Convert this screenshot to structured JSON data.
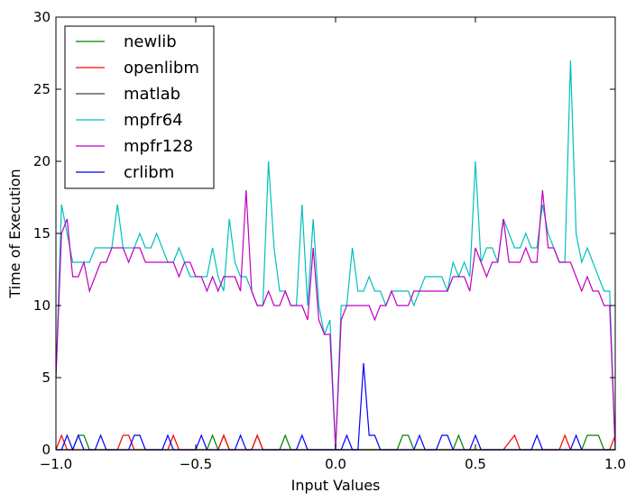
{
  "chart_data": {
    "type": "line",
    "title": "",
    "xlabel": "Input Values",
    "ylabel": "Time of Execution",
    "xlim": [
      -1.0,
      1.0
    ],
    "ylim": [
      0,
      30
    ],
    "xticks": [
      -1.0,
      -0.5,
      0.0,
      0.5,
      1.0
    ],
    "xtick_labels": [
      "−1.0",
      "−0.5",
      "0.0",
      "0.5",
      "1.0"
    ],
    "yticks": [
      0,
      5,
      10,
      15,
      20,
      25,
      30
    ],
    "ytick_labels": [
      "0",
      "5",
      "10",
      "15",
      "20",
      "25",
      "30"
    ],
    "grid": false,
    "legend_position": "top-left",
    "series": [
      {
        "name": "newlib",
        "color": "#008000",
        "points": [
          [
            -1.0,
            0
          ],
          [
            -0.94,
            0
          ],
          [
            -0.92,
            1
          ],
          [
            -0.9,
            1
          ],
          [
            -0.88,
            0
          ],
          [
            -0.84,
            0
          ],
          [
            -0.82,
            0
          ],
          [
            -0.8,
            0
          ],
          [
            -0.46,
            0
          ],
          [
            -0.44,
            1
          ],
          [
            -0.42,
            0
          ],
          [
            -0.4,
            1
          ],
          [
            -0.38,
            0
          ],
          [
            -0.3,
            0
          ],
          [
            -0.28,
            1
          ],
          [
            -0.26,
            0
          ],
          [
            -0.2,
            0
          ],
          [
            -0.18,
            1
          ],
          [
            -0.16,
            0
          ],
          [
            0.22,
            0
          ],
          [
            0.24,
            1
          ],
          [
            0.26,
            1
          ],
          [
            0.28,
            0
          ],
          [
            0.42,
            0
          ],
          [
            0.44,
            1
          ],
          [
            0.46,
            0
          ],
          [
            0.88,
            0
          ],
          [
            0.9,
            1
          ],
          [
            0.92,
            1
          ],
          [
            0.94,
            1
          ],
          [
            0.96,
            0
          ],
          [
            0.98,
            0
          ],
          [
            1.0,
            0
          ]
        ]
      },
      {
        "name": "openlibm",
        "color": "#ff0000",
        "points": [
          [
            -1.0,
            0
          ],
          [
            -0.98,
            1
          ],
          [
            -0.96,
            0
          ],
          [
            -0.78,
            0
          ],
          [
            -0.76,
            1
          ],
          [
            -0.74,
            1
          ],
          [
            -0.72,
            0
          ],
          [
            -0.6,
            0
          ],
          [
            -0.58,
            1
          ],
          [
            -0.56,
            0
          ],
          [
            -0.42,
            0
          ],
          [
            -0.4,
            1
          ],
          [
            -0.38,
            0
          ],
          [
            -0.3,
            0
          ],
          [
            -0.28,
            1
          ],
          [
            -0.26,
            0
          ],
          [
            0.1,
            0
          ],
          [
            0.12,
            0
          ],
          [
            -0.0,
            0
          ],
          [
            0.06,
            0
          ],
          [
            0.28,
            0
          ],
          [
            0.3,
            0
          ],
          [
            0.6,
            0
          ],
          [
            0.64,
            1
          ],
          [
            0.66,
            0
          ],
          [
            0.8,
            0
          ],
          [
            0.82,
            1
          ],
          [
            0.84,
            0
          ],
          [
            0.98,
            0
          ],
          [
            1.0,
            1
          ]
        ]
      },
      {
        "name": "matlab",
        "color": "#404040",
        "points": [
          [
            -1.0,
            0
          ],
          [
            1.0,
            0
          ]
        ]
      },
      {
        "name": "mpfr64",
        "color": "#00bfbf",
        "points": [
          [
            -1.0,
            5
          ],
          [
            -0.98,
            17
          ],
          [
            -0.96,
            15
          ],
          [
            -0.94,
            13
          ],
          [
            -0.92,
            13
          ],
          [
            -0.9,
            13
          ],
          [
            -0.88,
            13
          ],
          [
            -0.86,
            14
          ],
          [
            -0.84,
            14
          ],
          [
            -0.82,
            14
          ],
          [
            -0.8,
            14
          ],
          [
            -0.78,
            17
          ],
          [
            -0.76,
            14
          ],
          [
            -0.74,
            14
          ],
          [
            -0.72,
            14
          ],
          [
            -0.7,
            15
          ],
          [
            -0.68,
            14
          ],
          [
            -0.66,
            14
          ],
          [
            -0.64,
            15
          ],
          [
            -0.62,
            14
          ],
          [
            -0.6,
            13
          ],
          [
            -0.58,
            13
          ],
          [
            -0.56,
            14
          ],
          [
            -0.54,
            13
          ],
          [
            -0.52,
            12
          ],
          [
            -0.5,
            12
          ],
          [
            -0.48,
            12
          ],
          [
            -0.46,
            12
          ],
          [
            -0.44,
            14
          ],
          [
            -0.42,
            12
          ],
          [
            -0.4,
            11
          ],
          [
            -0.38,
            16
          ],
          [
            -0.36,
            13
          ],
          [
            -0.34,
            12
          ],
          [
            -0.32,
            12
          ],
          [
            -0.3,
            11
          ],
          [
            -0.28,
            10
          ],
          [
            -0.26,
            10
          ],
          [
            -0.24,
            20
          ],
          [
            -0.22,
            14
          ],
          [
            -0.2,
            11
          ],
          [
            -0.18,
            11
          ],
          [
            -0.16,
            10
          ],
          [
            -0.14,
            10
          ],
          [
            -0.12,
            17
          ],
          [
            -0.1,
            10
          ],
          [
            -0.08,
            16
          ],
          [
            -0.06,
            10
          ],
          [
            -0.04,
            8
          ],
          [
            -0.02,
            9
          ],
          [
            0.0,
            0
          ],
          [
            0.02,
            10
          ],
          [
            0.04,
            10
          ],
          [
            0.06,
            14
          ],
          [
            0.08,
            11
          ],
          [
            0.1,
            11
          ],
          [
            0.12,
            12
          ],
          [
            0.14,
            11
          ],
          [
            0.16,
            11
          ],
          [
            0.18,
            10
          ],
          [
            0.2,
            11
          ],
          [
            0.22,
            11
          ],
          [
            0.24,
            11
          ],
          [
            0.26,
            11
          ],
          [
            0.28,
            10
          ],
          [
            0.3,
            11
          ],
          [
            0.32,
            12
          ],
          [
            0.34,
            12
          ],
          [
            0.36,
            12
          ],
          [
            0.38,
            12
          ],
          [
            0.4,
            11
          ],
          [
            0.42,
            13
          ],
          [
            0.44,
            12
          ],
          [
            0.46,
            13
          ],
          [
            0.48,
            12
          ],
          [
            0.5,
            20
          ],
          [
            0.52,
            13
          ],
          [
            0.54,
            14
          ],
          [
            0.56,
            14
          ],
          [
            0.58,
            13
          ],
          [
            0.6,
            16
          ],
          [
            0.62,
            15
          ],
          [
            0.64,
            14
          ],
          [
            0.66,
            14
          ],
          [
            0.68,
            15
          ],
          [
            0.7,
            14
          ],
          [
            0.72,
            14
          ],
          [
            0.74,
            17
          ],
          [
            0.76,
            15
          ],
          [
            0.78,
            14
          ],
          [
            0.8,
            13
          ],
          [
            0.82,
            13
          ],
          [
            0.84,
            27
          ],
          [
            0.86,
            15
          ],
          [
            0.88,
            13
          ],
          [
            0.9,
            14
          ],
          [
            0.92,
            13
          ],
          [
            0.94,
            12
          ],
          [
            0.96,
            11
          ],
          [
            0.98,
            11
          ],
          [
            1.0,
            0
          ]
        ]
      },
      {
        "name": "mpfr128",
        "color": "#bf00bf",
        "points": [
          [
            -1.0,
            5
          ],
          [
            -0.98,
            15
          ],
          [
            -0.96,
            16
          ],
          [
            -0.94,
            12
          ],
          [
            -0.92,
            12
          ],
          [
            -0.9,
            13
          ],
          [
            -0.88,
            11
          ],
          [
            -0.86,
            12
          ],
          [
            -0.84,
            13
          ],
          [
            -0.82,
            13
          ],
          [
            -0.8,
            14
          ],
          [
            -0.78,
            14
          ],
          [
            -0.76,
            14
          ],
          [
            -0.74,
            13
          ],
          [
            -0.72,
            14
          ],
          [
            -0.7,
            14
          ],
          [
            -0.68,
            13
          ],
          [
            -0.66,
            13
          ],
          [
            -0.64,
            13
          ],
          [
            -0.62,
            13
          ],
          [
            -0.6,
            13
          ],
          [
            -0.58,
            13
          ],
          [
            -0.56,
            12
          ],
          [
            -0.54,
            13
          ],
          [
            -0.52,
            13
          ],
          [
            -0.5,
            12
          ],
          [
            -0.48,
            12
          ],
          [
            -0.46,
            11
          ],
          [
            -0.44,
            12
          ],
          [
            -0.42,
            11
          ],
          [
            -0.4,
            12
          ],
          [
            -0.38,
            12
          ],
          [
            -0.36,
            12
          ],
          [
            -0.34,
            11
          ],
          [
            -0.32,
            18
          ],
          [
            -0.3,
            11
          ],
          [
            -0.28,
            10
          ],
          [
            -0.26,
            10
          ],
          [
            -0.24,
            11
          ],
          [
            -0.22,
            10
          ],
          [
            -0.2,
            10
          ],
          [
            -0.18,
            11
          ],
          [
            -0.16,
            10
          ],
          [
            -0.14,
            10
          ],
          [
            -0.12,
            10
          ],
          [
            -0.1,
            9
          ],
          [
            -0.08,
            14
          ],
          [
            -0.06,
            9
          ],
          [
            -0.04,
            8
          ],
          [
            -0.02,
            8
          ],
          [
            0.0,
            0
          ],
          [
            0.02,
            9
          ],
          [
            0.04,
            10
          ],
          [
            0.06,
            10
          ],
          [
            0.08,
            10
          ],
          [
            0.1,
            10
          ],
          [
            0.12,
            10
          ],
          [
            0.14,
            9
          ],
          [
            0.16,
            10
          ],
          [
            0.18,
            10
          ],
          [
            0.2,
            11
          ],
          [
            0.22,
            10
          ],
          [
            0.24,
            10
          ],
          [
            0.26,
            10
          ],
          [
            0.28,
            11
          ],
          [
            0.3,
            11
          ],
          [
            0.32,
            11
          ],
          [
            0.34,
            11
          ],
          [
            0.36,
            11
          ],
          [
            0.38,
            11
          ],
          [
            0.4,
            11
          ],
          [
            0.42,
            12
          ],
          [
            0.44,
            12
          ],
          [
            0.46,
            12
          ],
          [
            0.48,
            11
          ],
          [
            0.5,
            14
          ],
          [
            0.52,
            13
          ],
          [
            0.54,
            12
          ],
          [
            0.56,
            13
          ],
          [
            0.58,
            13
          ],
          [
            0.6,
            16
          ],
          [
            0.62,
            13
          ],
          [
            0.64,
            13
          ],
          [
            0.66,
            13
          ],
          [
            0.68,
            14
          ],
          [
            0.7,
            13
          ],
          [
            0.72,
            13
          ],
          [
            0.74,
            18
          ],
          [
            0.76,
            14
          ],
          [
            0.78,
            14
          ],
          [
            0.8,
            13
          ],
          [
            0.82,
            13
          ],
          [
            0.84,
            13
          ],
          [
            0.86,
            12
          ],
          [
            0.88,
            11
          ],
          [
            0.9,
            12
          ],
          [
            0.92,
            11
          ],
          [
            0.94,
            11
          ],
          [
            0.96,
            10
          ],
          [
            0.98,
            10
          ],
          [
            1.0,
            0
          ]
        ]
      },
      {
        "name": "crlibm",
        "color": "#0000ff",
        "points": [
          [
            -1.0,
            0
          ],
          [
            -0.98,
            0
          ],
          [
            -0.96,
            1
          ],
          [
            -0.94,
            0
          ],
          [
            -0.92,
            1
          ],
          [
            -0.9,
            0
          ],
          [
            -0.86,
            0
          ],
          [
            -0.84,
            1
          ],
          [
            -0.82,
            0
          ],
          [
            -0.74,
            0
          ],
          [
            -0.72,
            1
          ],
          [
            -0.7,
            1
          ],
          [
            -0.68,
            0
          ],
          [
            -0.62,
            0
          ],
          [
            -0.6,
            1
          ],
          [
            -0.58,
            0
          ],
          [
            -0.5,
            0
          ],
          [
            -0.48,
            1
          ],
          [
            -0.46,
            0
          ],
          [
            -0.36,
            0
          ],
          [
            -0.34,
            1
          ],
          [
            -0.32,
            0
          ],
          [
            -0.14,
            0
          ],
          [
            -0.12,
            1
          ],
          [
            -0.1,
            0
          ],
          [
            0.0,
            0
          ],
          [
            0.02,
            0
          ],
          [
            0.04,
            1
          ],
          [
            0.06,
            0
          ],
          [
            0.08,
            0
          ],
          [
            0.1,
            6
          ],
          [
            0.12,
            1
          ],
          [
            0.14,
            1
          ],
          [
            0.16,
            0
          ],
          [
            0.28,
            0
          ],
          [
            0.3,
            1
          ],
          [
            0.32,
            0
          ],
          [
            0.36,
            0
          ],
          [
            0.38,
            1
          ],
          [
            0.4,
            1
          ],
          [
            0.42,
            0
          ],
          [
            0.48,
            0
          ],
          [
            0.5,
            1
          ],
          [
            0.52,
            0
          ],
          [
            0.7,
            0
          ],
          [
            0.72,
            1
          ],
          [
            0.74,
            0
          ],
          [
            0.84,
            0
          ],
          [
            0.86,
            1
          ],
          [
            0.88,
            0
          ],
          [
            0.98,
            0
          ],
          [
            1.0,
            0
          ]
        ]
      }
    ]
  }
}
